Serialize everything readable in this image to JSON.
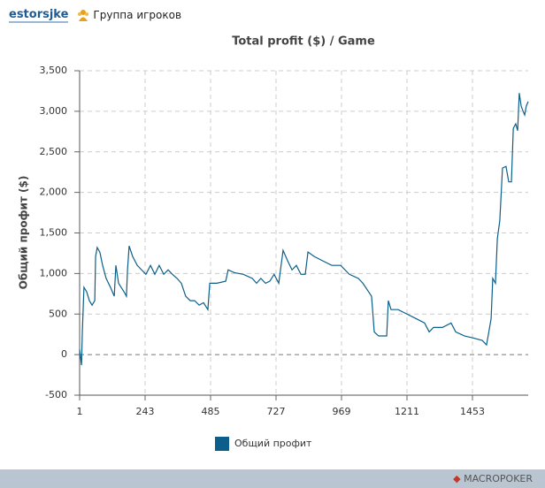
{
  "header": {
    "user": "estorsjke",
    "group": "Группа игроков"
  },
  "footer": {
    "logo": "MACROPOKER"
  },
  "chart_data": {
    "type": "line",
    "title": "Total profit ($) / Game",
    "y_label": "Общий профит ($)",
    "x": [
      1,
      8,
      11,
      17,
      27,
      37,
      47,
      57,
      60,
      66,
      76,
      86,
      99,
      115,
      129,
      135,
      145,
      165,
      174,
      178,
      184,
      197,
      214,
      230,
      246,
      263,
      279,
      295,
      312,
      328,
      344,
      361,
      377,
      393,
      410,
      426,
      443,
      459,
      475,
      482,
      508,
      541,
      550,
      573,
      606,
      639,
      655,
      671,
      688,
      704,
      720,
      737,
      753,
      770,
      786,
      802,
      819,
      835,
      845,
      868,
      900,
      933,
      966,
      982,
      998,
      1031,
      1048,
      1080,
      1090,
      1106,
      1136,
      1142,
      1152,
      1178,
      1211,
      1244,
      1276,
      1293,
      1309,
      1342,
      1374,
      1391,
      1424,
      1456,
      1489,
      1505,
      1512,
      1522,
      1528,
      1538,
      1545,
      1554,
      1564,
      1577,
      1587,
      1597,
      1604,
      1613,
      1620,
      1626,
      1633,
      1639,
      1646,
      1652,
      1659
    ],
    "series": [
      {
        "name": "Общий профит",
        "color": "#0b5f8a",
        "values": [
          65,
          -130,
          280,
          830,
          775,
          665,
          610,
          665,
          1210,
          1320,
          1260,
          1100,
          940,
          830,
          720,
          1100,
          880,
          775,
          720,
          1045,
          1340,
          1210,
          1100,
          1045,
          990,
          1100,
          990,
          1100,
          990,
          1045,
          990,
          940,
          880,
          720,
          665,
          665,
          610,
          640,
          555,
          880,
          880,
          905,
          1045,
          1010,
          990,
          940,
          880,
          940,
          880,
          905,
          990,
          880,
          1285,
          1155,
          1045,
          1100,
          990,
          990,
          1265,
          1210,
          1155,
          1100,
          1100,
          1045,
          990,
          940,
          880,
          720,
          280,
          230,
          230,
          665,
          555,
          555,
          500,
          445,
          390,
          280,
          335,
          335,
          390,
          280,
          230,
          205,
          175,
          120,
          250,
          445,
          940,
          880,
          1430,
          1650,
          2300,
          2320,
          2130,
          2130,
          2790,
          2845,
          2760,
          3225,
          3065,
          3010,
          2955,
          3065,
          3120
        ]
      }
    ],
    "xlim": [
      1,
      1659
    ],
    "xticks": [
      1,
      243,
      485,
      727,
      969,
      1211,
      1453
    ],
    "ylim": [
      -500,
      3500
    ],
    "yticks": [
      -500,
      0,
      500,
      {
        "value": 1000,
        "label": "1,000"
      },
      {
        "value": 1500,
        "label": "1,500"
      },
      {
        "value": 2000,
        "label": "2,000"
      },
      {
        "value": 2500,
        "label": "2,500"
      },
      {
        "value": 3000,
        "label": "3,000"
      },
      {
        "value": 3500,
        "label": "3,500"
      }
    ],
    "grid": true,
    "legend": "bottom"
  }
}
